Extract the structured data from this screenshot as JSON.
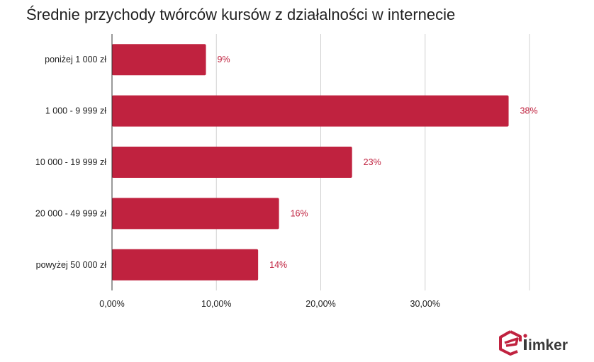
{
  "chart_data": {
    "type": "bar",
    "orientation": "horizontal",
    "title": "Średnie przychody twórców kursów z działalności w internecie",
    "categories": [
      "poniżej 1 000 zł",
      "1 000 - 9 999 zł",
      "10 000 - 19 999 zł",
      "20 000 - 49 999 zł",
      "powyżej 50 000 zł"
    ],
    "values": [
      9,
      38,
      23,
      16,
      14
    ],
    "data_labels": [
      "9%",
      "38%",
      "23%",
      "16%",
      "14%"
    ],
    "xlim": [
      0,
      40
    ],
    "x_ticks": [
      0,
      10,
      20,
      30
    ],
    "x_tick_labels": [
      "0,00%",
      "10,00%",
      "20,00%",
      "30,00%"
    ],
    "grid": true,
    "bar_color": "#c0223f",
    "label_color": "#c0223f"
  },
  "logo": {
    "text": "imker",
    "accent": "#c0223f"
  }
}
